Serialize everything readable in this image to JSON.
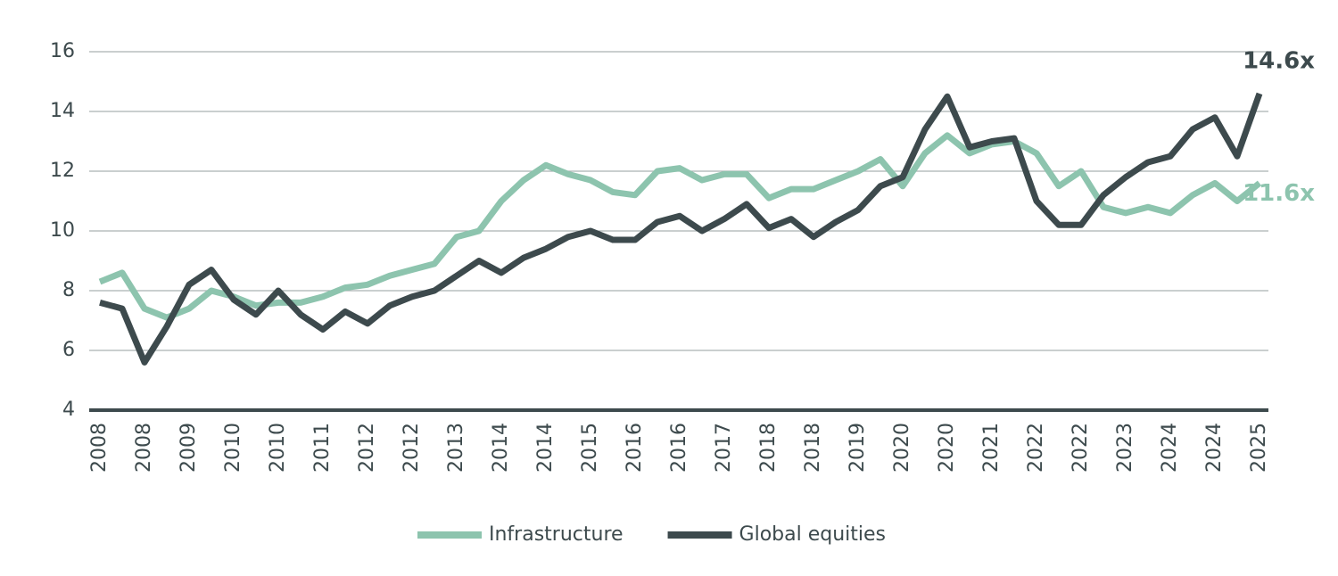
{
  "chart_data": {
    "type": "line",
    "categories": [
      "2008",
      null,
      "2008",
      null,
      "2009",
      null,
      "2010",
      null,
      "2010",
      null,
      "2011",
      null,
      "2012",
      null,
      "2012",
      null,
      "2013",
      null,
      "2014",
      null,
      "2014",
      null,
      "2015",
      null,
      "2016",
      null,
      "2016",
      null,
      "2017",
      null,
      "2018",
      null,
      "2018",
      null,
      "2019",
      null,
      "2020",
      null,
      "2020",
      null,
      "2021",
      null,
      "2022",
      null,
      "2022",
      null,
      "2023",
      null,
      "2024",
      null,
      "2024",
      null,
      "2025"
    ],
    "series": [
      {
        "name": "Infrastructure",
        "color": "#8dc4ae",
        "values": [
          8.3,
          8.6,
          7.4,
          7.1,
          7.4,
          8.0,
          7.8,
          7.5,
          7.6,
          7.6,
          7.8,
          8.1,
          8.2,
          8.5,
          8.7,
          8.9,
          9.8,
          10.0,
          11.0,
          11.7,
          12.2,
          11.9,
          11.7,
          11.3,
          11.2,
          12.0,
          12.1,
          11.7,
          11.9,
          11.9,
          11.1,
          11.4,
          11.4,
          11.7,
          12.0,
          12.4,
          11.5,
          12.6,
          13.2,
          12.6,
          12.9,
          13.0,
          12.6,
          11.5,
          12.0,
          10.8,
          10.6,
          10.8,
          10.6,
          11.2,
          11.6,
          11.0,
          11.6
        ],
        "value_labels": [
          null,
          null,
          null,
          null,
          null,
          null,
          null,
          null,
          null,
          null,
          null,
          null,
          null,
          null,
          null,
          null,
          null,
          null,
          null,
          null,
          null,
          null,
          null,
          null,
          null,
          null,
          null,
          null,
          null,
          null,
          null,
          null,
          null,
          null,
          null,
          null,
          null,
          null,
          null,
          null,
          null,
          null,
          null,
          null,
          null,
          null,
          null,
          null,
          null,
          null,
          null,
          null,
          "11.6x"
        ]
      },
      {
        "name": "Global equities",
        "color": "#3d4a4d",
        "values": [
          7.6,
          7.4,
          5.6,
          6.8,
          8.2,
          8.7,
          7.7,
          7.2,
          8.0,
          7.2,
          6.7,
          7.3,
          6.9,
          7.5,
          7.8,
          8.0,
          8.5,
          9.0,
          8.6,
          9.1,
          9.4,
          9.8,
          10.0,
          9.7,
          9.7,
          10.3,
          10.5,
          10.0,
          10.4,
          10.9,
          10.1,
          10.4,
          9.8,
          10.3,
          10.7,
          11.5,
          11.8,
          13.4,
          14.5,
          12.8,
          13.0,
          13.1,
          11.0,
          10.2,
          10.2,
          11.2,
          11.8,
          12.3,
          12.5,
          13.4,
          13.8,
          12.5,
          14.6
        ],
        "value_labels": [
          null,
          null,
          null,
          null,
          null,
          null,
          null,
          null,
          null,
          null,
          null,
          null,
          null,
          null,
          null,
          null,
          null,
          null,
          null,
          null,
          null,
          null,
          null,
          null,
          null,
          null,
          null,
          null,
          null,
          null,
          null,
          null,
          null,
          null,
          null,
          null,
          null,
          null,
          null,
          null,
          null,
          null,
          null,
          null,
          null,
          null,
          null,
          null,
          null,
          null,
          null,
          null,
          "14.6x"
        ]
      }
    ],
    "ylim": [
      4,
      16
    ],
    "yticks": [
      4,
      6,
      8,
      10,
      12,
      14,
      16
    ],
    "grid": true,
    "legend": "bottom"
  }
}
